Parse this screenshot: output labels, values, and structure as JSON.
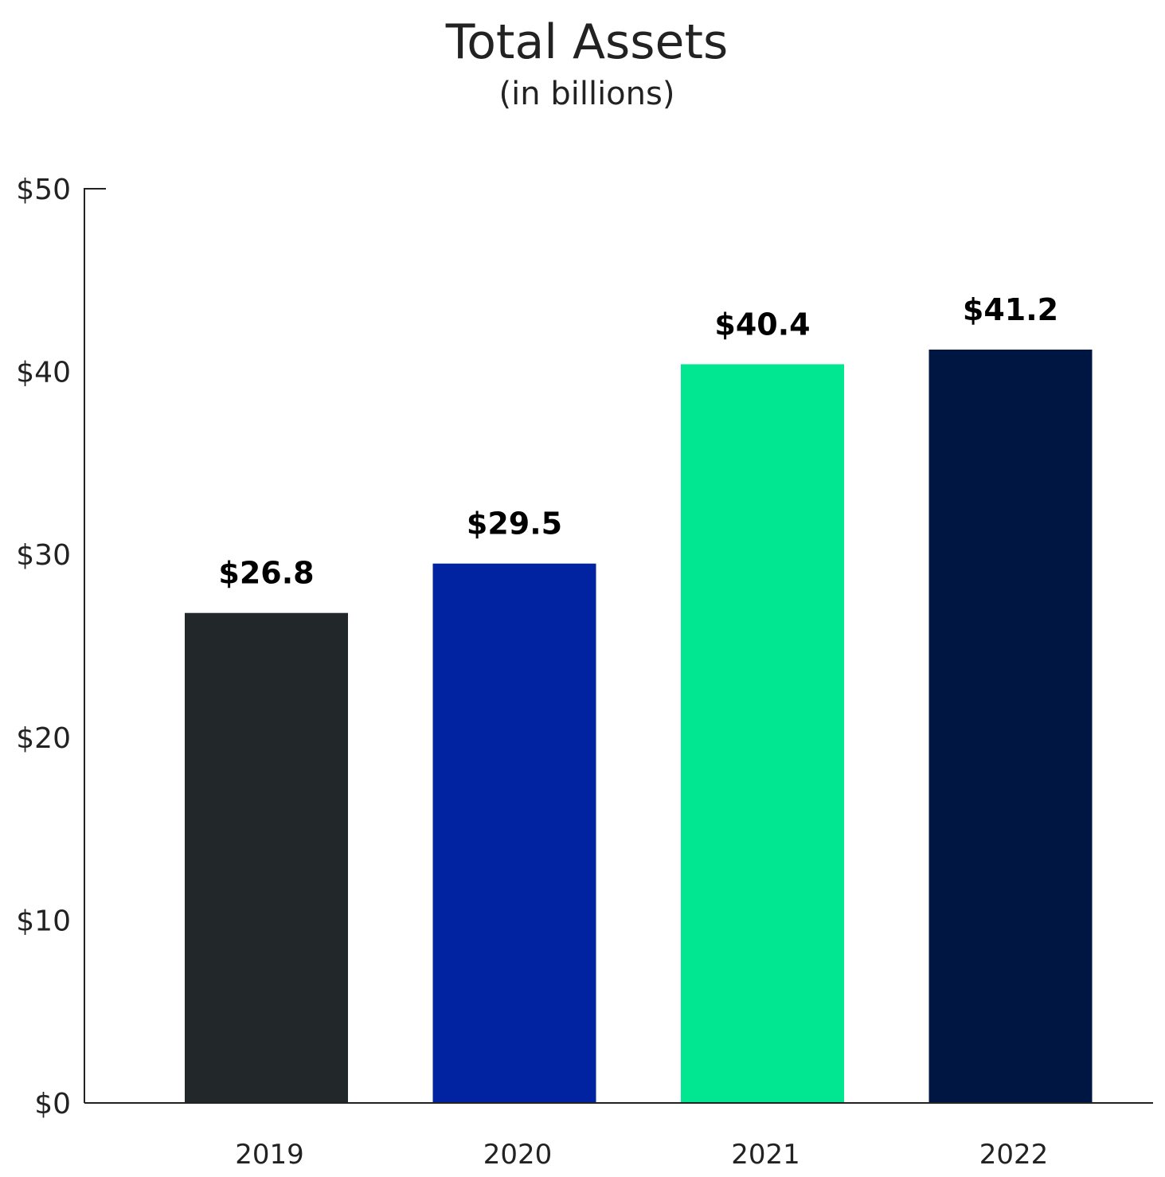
{
  "chart_data": {
    "type": "bar",
    "title": "Total Assets",
    "subtitle": "(in billions)",
    "xlabel": "",
    "ylabel": "",
    "categories": [
      "2019",
      "2020",
      "2021",
      "2022"
    ],
    "values": [
      26.8,
      29.5,
      40.4,
      41.2
    ],
    "data_labels": [
      "$26.8",
      "$29.5",
      "$40.4",
      "$41.2"
    ],
    "colors": [
      "#22272a",
      "#0223a1",
      "#01e691",
      "#001642"
    ],
    "ylim": [
      0,
      50
    ],
    "yticks": [
      0,
      10,
      20,
      30,
      40,
      50
    ],
    "ytick_labels": [
      "$0",
      "$10",
      "$20",
      "$30",
      "$40",
      "$50"
    ],
    "grid": false,
    "legend": "none"
  }
}
